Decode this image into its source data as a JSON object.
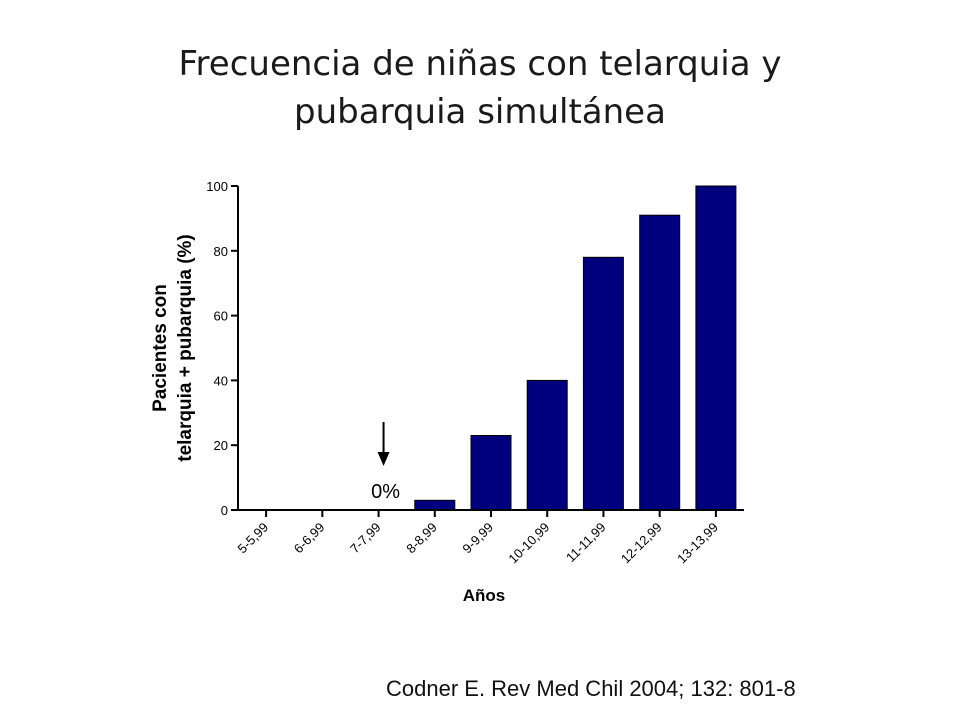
{
  "slide": {
    "title_line1": "Frecuencia de niñas con telarquia y",
    "title_line2": "pubarquia simultánea",
    "citation": "Codner E. Rev Med Chil 2004; 132: 801-8"
  },
  "chart_data": {
    "type": "bar",
    "categories": [
      "5-5,99",
      "6-6,99",
      "7-7,99",
      "8-8,99",
      "9-9,99",
      "10-10,99",
      "11-11,99",
      "12-12,99",
      "13-13,99"
    ],
    "values": [
      0,
      0,
      0,
      3,
      23,
      40,
      78,
      91,
      100
    ],
    "xlabel": "Años",
    "ylabel_line1": "Pacientes con",
    "ylabel_line2": "telarquia + pubarquia (%)",
    "ylim": [
      0,
      100
    ],
    "yticks": [
      0,
      20,
      40,
      60,
      80,
      100
    ],
    "grid": false,
    "bar_color": "#00007f",
    "annotation": {
      "text": "0%",
      "category": "7-7,99",
      "arrow": "down"
    }
  }
}
